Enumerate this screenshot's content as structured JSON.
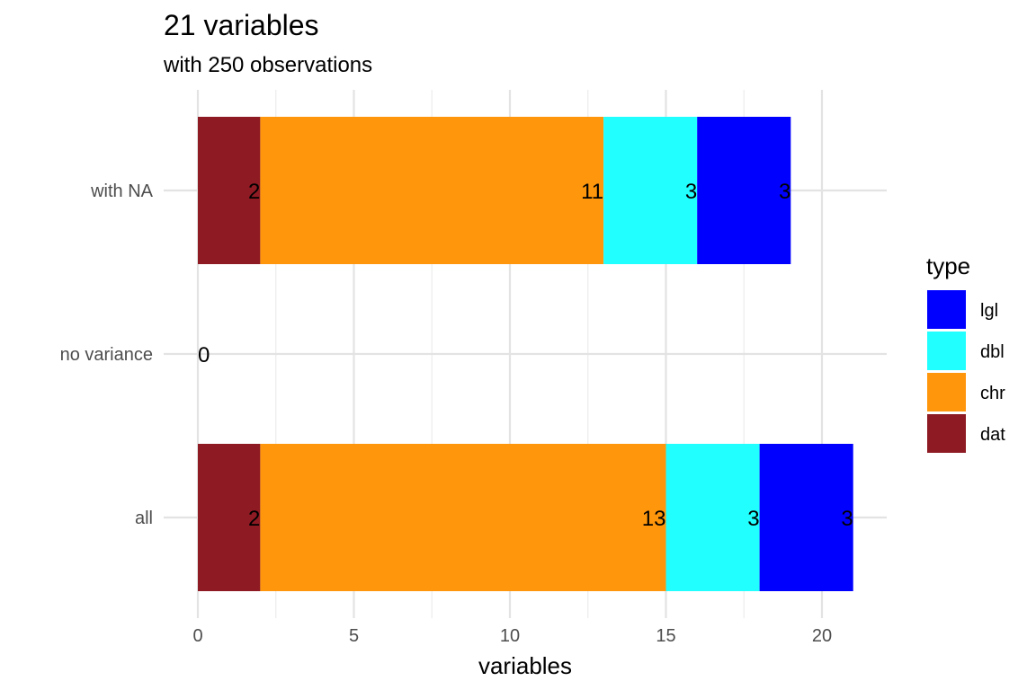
{
  "chart_data": {
    "type": "bar",
    "orientation": "horizontal",
    "stacked": true,
    "title": "21 variables",
    "subtitle": "with 250 observations",
    "xlabel": "variables",
    "ylabel": "",
    "xlim": [
      0,
      21
    ],
    "x_ticks": [
      0,
      5,
      10,
      15,
      20
    ],
    "categories": [
      "with NA",
      "no variance",
      "all"
    ],
    "series": [
      {
        "name": "dat",
        "color": "#8E1B23",
        "values": [
          2,
          0,
          2
        ]
      },
      {
        "name": "chr",
        "color": "#FF960C",
        "values": [
          11,
          0,
          13
        ]
      },
      {
        "name": "dbl",
        "color": "#22FFFF",
        "values": [
          3,
          0,
          3
        ]
      },
      {
        "name": "lgl",
        "color": "#0000FF",
        "values": [
          3,
          0,
          3
        ]
      }
    ],
    "zero_labels": [
      "",
      "0",
      ""
    ],
    "legend": {
      "title": "type",
      "position": "right",
      "order": [
        "lgl",
        "dbl",
        "chr",
        "dat"
      ]
    },
    "grid": true
  }
}
